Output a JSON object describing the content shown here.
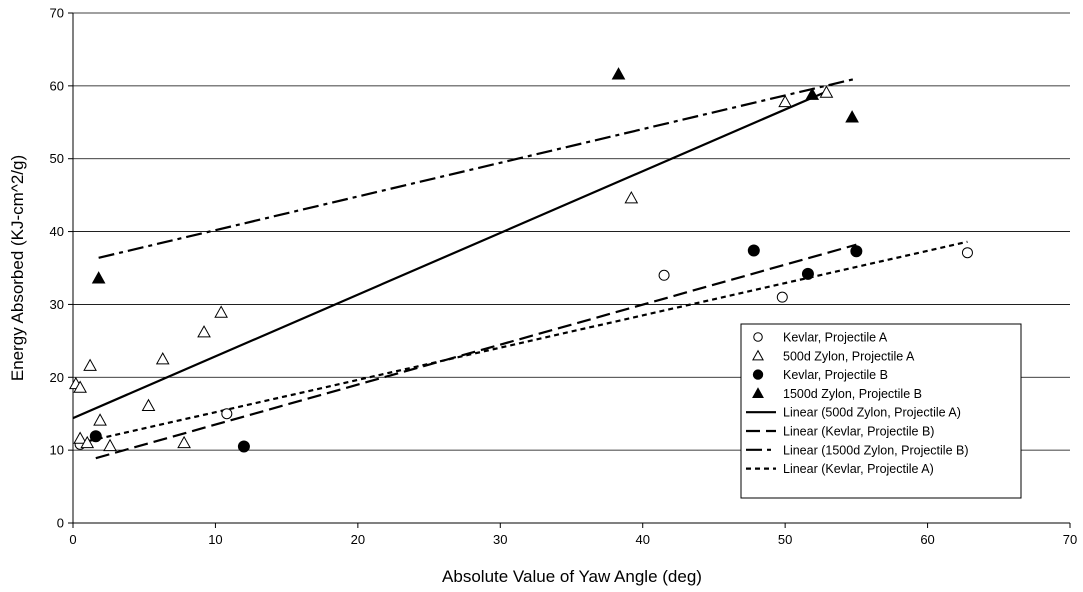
{
  "chart_data": {
    "type": "scatter",
    "title": "",
    "xlabel": "Absolute Value of Yaw Angle (deg)",
    "ylabel": "Energy Absorbed (KJ-cm^2/g)",
    "xlim": [
      0,
      70
    ],
    "ylim": [
      0,
      70
    ],
    "xticks": [
      0,
      10,
      20,
      30,
      40,
      50,
      60,
      70
    ],
    "yticks": [
      0,
      10,
      20,
      30,
      40,
      50,
      60,
      70
    ],
    "grid": "horizontal",
    "legend_position": "bottom-right",
    "series": [
      {
        "name": "Kevlar, Projectile A",
        "marker": "circle-open",
        "color": "#000000",
        "points": [
          [
            0.5,
            10.8
          ],
          [
            10.8,
            15.0
          ],
          [
            41.5,
            34.0
          ],
          [
            49.8,
            31.0
          ],
          [
            62.8,
            37.1
          ]
        ]
      },
      {
        "name": "500d Zylon, Projectile A",
        "marker": "triangle-open",
        "color": "#000000",
        "points": [
          [
            0.2,
            19.1
          ],
          [
            0.5,
            18.6
          ],
          [
            0.5,
            11.6
          ],
          [
            1.0,
            11.0
          ],
          [
            1.2,
            21.6
          ],
          [
            1.9,
            14.1
          ],
          [
            2.6,
            10.6
          ],
          [
            5.3,
            16.1
          ],
          [
            6.3,
            22.5
          ],
          [
            7.8,
            11.0
          ],
          [
            9.2,
            26.2
          ],
          [
            10.4,
            28.9
          ],
          [
            39.2,
            44.6
          ],
          [
            50.0,
            57.8
          ],
          [
            52.9,
            59.1
          ]
        ]
      },
      {
        "name": "Kevlar, Projectile B",
        "marker": "circle-filled",
        "color": "#000000",
        "points": [
          [
            1.6,
            11.9
          ],
          [
            12.0,
            10.5
          ],
          [
            47.8,
            37.4
          ],
          [
            51.6,
            34.2
          ],
          [
            55.0,
            37.3
          ]
        ]
      },
      {
        "name": "1500d Zylon, Projectile B",
        "marker": "triangle-filled",
        "color": "#000000",
        "points": [
          [
            1.8,
            33.6
          ],
          [
            38.3,
            61.6
          ],
          [
            51.9,
            58.8
          ],
          [
            54.7,
            55.7
          ]
        ]
      }
    ],
    "trendlines": [
      {
        "name": "Linear (500d Zylon, Projectile A)",
        "style": "solid",
        "x": [
          0,
          53
        ],
        "y": [
          14.4,
          59.3
        ]
      },
      {
        "name": "Linear (Kevlar, Projectile B)",
        "style": "long-dash",
        "x": [
          1.6,
          55
        ],
        "y": [
          8.9,
          38.2
        ]
      },
      {
        "name": "Linear (1500d Zylon, Projectile B)",
        "style": "long-dash-dot",
        "x": [
          1.8,
          55
        ],
        "y": [
          36.4,
          61.0
        ]
      },
      {
        "name": "Linear (Kevlar, Projectile A)",
        "style": "short-dash",
        "x": [
          0.5,
          62.8
        ],
        "y": [
          11.0,
          38.6
        ]
      }
    ]
  }
}
